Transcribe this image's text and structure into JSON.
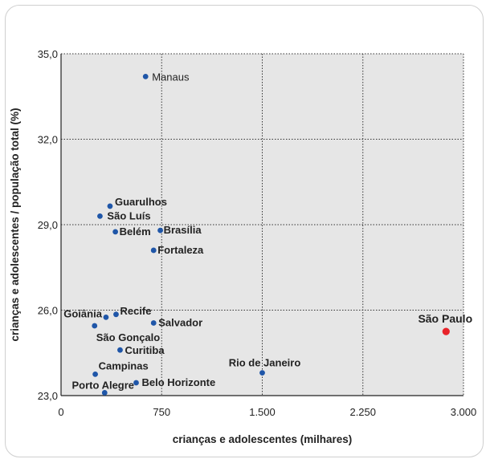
{
  "chart_data": {
    "type": "scatter",
    "title": "",
    "xlabel": "crianças e adolescentes (milhares)",
    "ylabel": "crianças e adolescentes / população total (%)",
    "xlim": [
      0,
      3000
    ],
    "ylim": [
      23.0,
      35.0
    ],
    "xticks": [
      0,
      750,
      1500,
      2250,
      3000
    ],
    "xtick_labels": [
      "0",
      "750",
      "1.500",
      "2.250",
      "3.000"
    ],
    "yticks": [
      23.0,
      26.0,
      29.0,
      32.0,
      35.0
    ],
    "ytick_labels": [
      "23,0",
      "26,0",
      "29,0",
      "32,0",
      "35,0"
    ],
    "grid": "dotted",
    "colors": {
      "default_point": "#1f56a8",
      "highlight_point": "#e8232a",
      "plot_background": "#e6e6e6"
    },
    "points": [
      {
        "name": "Manaus",
        "x": 630,
        "y": 34.2
      },
      {
        "name": "Guarulhos",
        "x": 365,
        "y": 29.65
      },
      {
        "name": "São Luís",
        "x": 290,
        "y": 29.3
      },
      {
        "name": "Belém",
        "x": 405,
        "y": 28.75
      },
      {
        "name": "Brasília",
        "x": 740,
        "y": 28.8
      },
      {
        "name": "Fortaleza",
        "x": 690,
        "y": 28.1
      },
      {
        "name": "Goiânia",
        "x": 335,
        "y": 25.75
      },
      {
        "name": "Recife",
        "x": 410,
        "y": 25.85
      },
      {
        "name": "São Gonçalo",
        "x": 250,
        "y": 25.45
      },
      {
        "name": "Salvador",
        "x": 690,
        "y": 25.55
      },
      {
        "name": "Curitiba",
        "x": 440,
        "y": 24.6
      },
      {
        "name": "Rio de Janeiro",
        "x": 1500,
        "y": 23.8
      },
      {
        "name": "Campinas",
        "x": 255,
        "y": 23.75
      },
      {
        "name": "Belo Horizonte",
        "x": 560,
        "y": 23.45
      },
      {
        "name": "Porto Alegre",
        "x": 325,
        "y": 23.1
      },
      {
        "name": "São Paulo",
        "x": 2870,
        "y": 25.25,
        "highlight": true
      }
    ]
  }
}
